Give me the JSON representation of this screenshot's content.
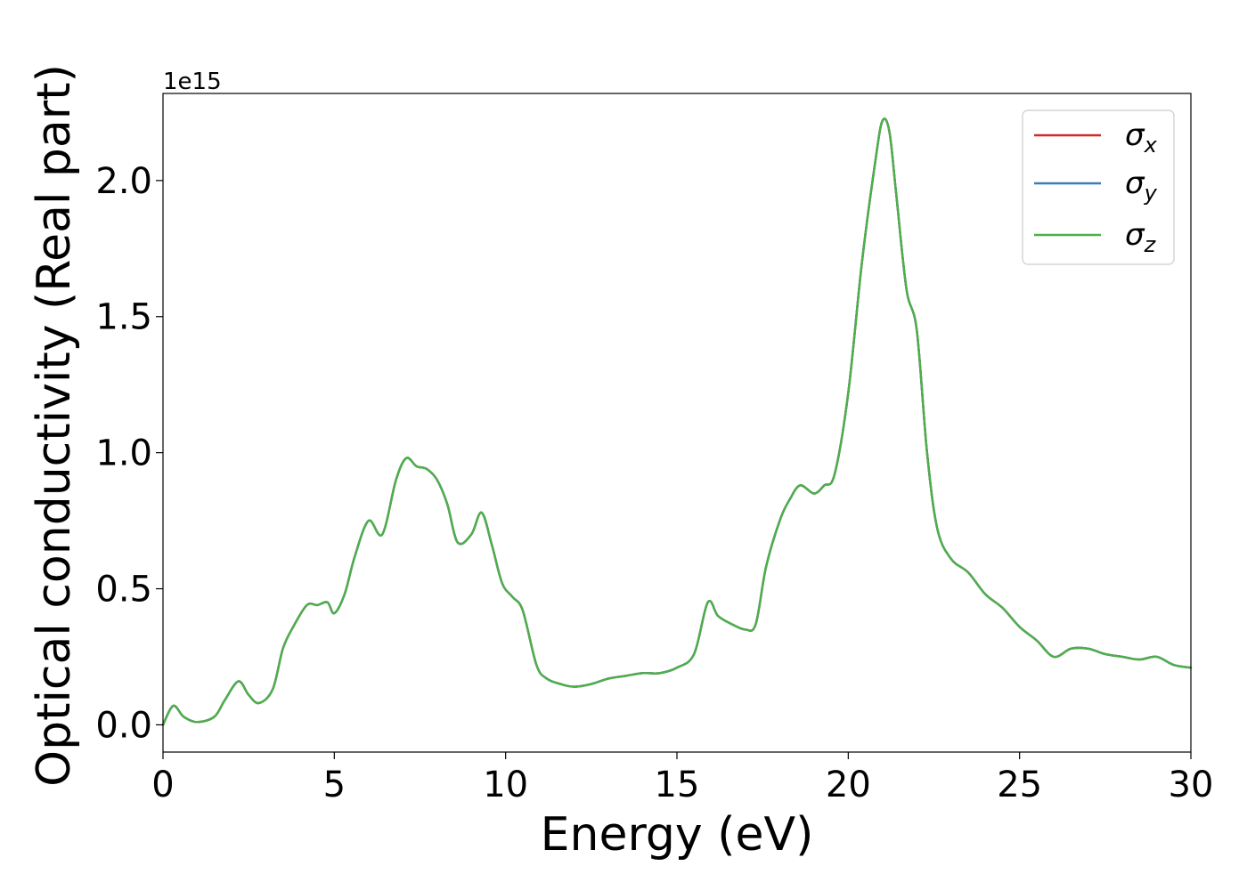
{
  "chart_data": {
    "type": "line",
    "title": "",
    "xlabel": "Energy (eV)",
    "ylabel": "Optical conductivity (Real part)",
    "y_offset_label": "1e15",
    "xlim": [
      0,
      30
    ],
    "ylim": [
      -0.1,
      2.32
    ],
    "xticks": [
      0,
      5,
      10,
      15,
      20,
      25,
      30
    ],
    "xtick_labels": [
      "0",
      "5",
      "10",
      "15",
      "20",
      "25",
      "30"
    ],
    "yticks": [
      0.0,
      0.5,
      1.0,
      1.5,
      2.0
    ],
    "ytick_labels": [
      "0.0",
      "0.5",
      "1.0",
      "1.5",
      "2.0"
    ],
    "grid": false,
    "legend_position": "top-right",
    "x": [
      0,
      0.3,
      0.6,
      1.0,
      1.5,
      1.8,
      2.2,
      2.5,
      2.8,
      3.2,
      3.5,
      3.8,
      4.2,
      4.5,
      4.8,
      5.0,
      5.3,
      5.6,
      6.0,
      6.4,
      6.8,
      7.1,
      7.4,
      7.7,
      8.0,
      8.3,
      8.6,
      9.0,
      9.3,
      9.6,
      9.9,
      10.2,
      10.5,
      10.9,
      11.2,
      11.6,
      12.0,
      12.5,
      13.0,
      13.5,
      14.0,
      14.5,
      15.0,
      15.5,
      15.9,
      16.2,
      16.6,
      17.0,
      17.3,
      17.6,
      18.0,
      18.3,
      18.6,
      19.0,
      19.3,
      19.6,
      20.0,
      20.4,
      20.8,
      21.0,
      21.2,
      21.4,
      21.7,
      22.0,
      22.3,
      22.6,
      23.0,
      23.5,
      24.0,
      24.5,
      25.0,
      25.5,
      26.0,
      26.5,
      27.0,
      27.5,
      28.0,
      28.5,
      29.0,
      29.5,
      30.0
    ],
    "series": [
      {
        "name": "σx",
        "color": "#d62728",
        "values": [
          0.0,
          0.07,
          0.03,
          0.01,
          0.03,
          0.09,
          0.16,
          0.11,
          0.08,
          0.13,
          0.28,
          0.36,
          0.44,
          0.44,
          0.45,
          0.41,
          0.48,
          0.62,
          0.75,
          0.7,
          0.9,
          0.98,
          0.95,
          0.94,
          0.9,
          0.81,
          0.67,
          0.7,
          0.78,
          0.66,
          0.52,
          0.47,
          0.42,
          0.22,
          0.17,
          0.15,
          0.14,
          0.15,
          0.17,
          0.18,
          0.19,
          0.19,
          0.21,
          0.26,
          0.45,
          0.4,
          0.37,
          0.35,
          0.37,
          0.58,
          0.75,
          0.83,
          0.88,
          0.85,
          0.88,
          0.92,
          1.22,
          1.7,
          2.08,
          2.22,
          2.18,
          1.95,
          1.6,
          1.45,
          1.0,
          0.72,
          0.61,
          0.56,
          0.48,
          0.43,
          0.36,
          0.31,
          0.25,
          0.28,
          0.28,
          0.26,
          0.25,
          0.24,
          0.25,
          0.22,
          0.21
        ]
      },
      {
        "name": "σy",
        "color": "#377eb8",
        "values": [
          0.0,
          0.07,
          0.03,
          0.01,
          0.03,
          0.09,
          0.16,
          0.11,
          0.08,
          0.13,
          0.28,
          0.36,
          0.44,
          0.44,
          0.45,
          0.41,
          0.48,
          0.62,
          0.75,
          0.7,
          0.9,
          0.98,
          0.95,
          0.94,
          0.9,
          0.81,
          0.67,
          0.7,
          0.78,
          0.66,
          0.52,
          0.47,
          0.42,
          0.22,
          0.17,
          0.15,
          0.14,
          0.15,
          0.17,
          0.18,
          0.19,
          0.19,
          0.21,
          0.26,
          0.45,
          0.4,
          0.37,
          0.35,
          0.37,
          0.58,
          0.75,
          0.83,
          0.88,
          0.85,
          0.88,
          0.92,
          1.22,
          1.7,
          2.08,
          2.22,
          2.18,
          1.95,
          1.6,
          1.45,
          1.0,
          0.72,
          0.61,
          0.56,
          0.48,
          0.43,
          0.36,
          0.31,
          0.25,
          0.28,
          0.28,
          0.26,
          0.25,
          0.24,
          0.25,
          0.22,
          0.21
        ]
      },
      {
        "name": "σz",
        "color": "#4daf4a",
        "values": [
          0.0,
          0.07,
          0.03,
          0.01,
          0.03,
          0.09,
          0.16,
          0.11,
          0.08,
          0.13,
          0.28,
          0.36,
          0.44,
          0.44,
          0.45,
          0.41,
          0.48,
          0.62,
          0.75,
          0.7,
          0.9,
          0.98,
          0.95,
          0.94,
          0.9,
          0.81,
          0.67,
          0.7,
          0.78,
          0.66,
          0.52,
          0.47,
          0.42,
          0.22,
          0.17,
          0.15,
          0.14,
          0.15,
          0.17,
          0.18,
          0.19,
          0.19,
          0.21,
          0.26,
          0.45,
          0.4,
          0.37,
          0.35,
          0.37,
          0.58,
          0.75,
          0.83,
          0.88,
          0.85,
          0.88,
          0.92,
          1.22,
          1.7,
          2.08,
          2.22,
          2.18,
          1.95,
          1.6,
          1.45,
          1.0,
          0.72,
          0.61,
          0.56,
          0.48,
          0.43,
          0.36,
          0.31,
          0.25,
          0.28,
          0.28,
          0.26,
          0.25,
          0.24,
          0.25,
          0.22,
          0.21
        ]
      }
    ],
    "legend": [
      {
        "symbol": "σ",
        "subscript": "x"
      },
      {
        "symbol": "σ",
        "subscript": "y"
      },
      {
        "symbol": "σ",
        "subscript": "z"
      }
    ]
  }
}
